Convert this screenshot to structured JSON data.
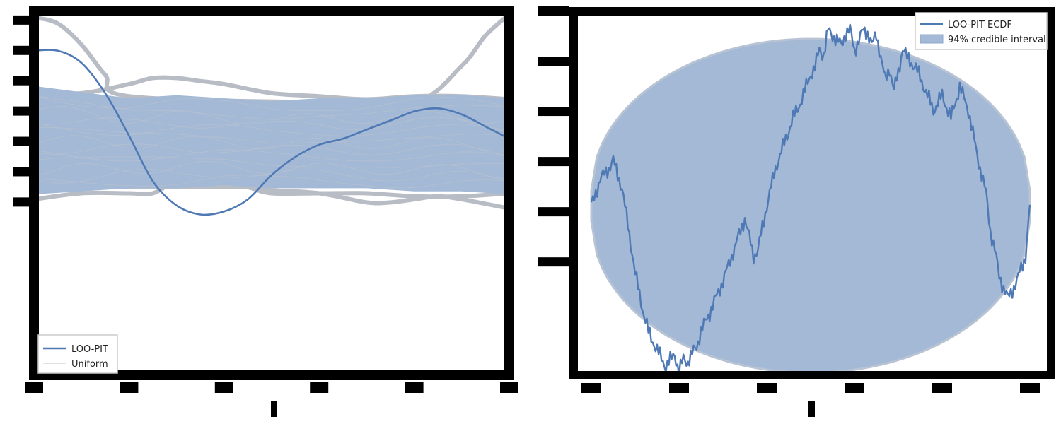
{
  "colors": {
    "line": "#4f79b5",
    "band": "#a3b9d6",
    "uniform": "#b8bcc4",
    "spine": "#000000",
    "background": "#ffffff"
  },
  "chart_data": [
    {
      "type": "line",
      "subtype": "kde-loo-pit",
      "xlim": [
        0,
        1
      ],
      "ylim": [
        0,
        1.2
      ],
      "grid": false,
      "tick_labels_legible": false,
      "legend": {
        "placement": "bottom-left",
        "entries": [
          {
            "label": "LOO-PIT",
            "style": "line",
            "color": "#4f79b5"
          },
          {
            "label": "Uniform",
            "style": "thin-line",
            "color": "#b8bcc4"
          }
        ]
      },
      "series": [
        {
          "name": "LOO-PIT",
          "x": [
            0,
            0.05,
            0.1,
            0.15,
            0.2,
            0.25,
            0.3,
            0.35,
            0.4,
            0.45,
            0.5,
            0.55,
            0.6,
            0.65,
            0.7,
            0.75,
            0.8,
            0.85,
            0.9,
            0.95,
            1.0
          ],
          "y": [
            1.07,
            1.07,
            1.03,
            0.93,
            0.79,
            0.64,
            0.56,
            0.53,
            0.54,
            0.58,
            0.66,
            0.72,
            0.76,
            0.78,
            0.81,
            0.84,
            0.87,
            0.88,
            0.86,
            0.82,
            0.78
          ]
        }
      ],
      "uniform_band": {
        "x": [
          0,
          0.1,
          0.2,
          0.3,
          0.4,
          0.5,
          0.6,
          0.7,
          0.8,
          0.9,
          1.0
        ],
        "lower": [
          0.6,
          0.61,
          0.62,
          0.62,
          0.63,
          0.62,
          0.62,
          0.62,
          0.61,
          0.61,
          0.6
        ],
        "upper": [
          0.95,
          0.93,
          0.91,
          0.92,
          0.91,
          0.9,
          0.91,
          0.91,
          0.92,
          0.92,
          0.91
        ]
      },
      "uniform_extremes": [
        {
          "x": [
            0,
            0.05,
            0.1,
            0.15,
            0.2,
            0.6,
            0.8,
            0.9,
            0.95,
            1.0
          ],
          "y": [
            1.18,
            1.16,
            1.09,
            0.99,
            0.92,
            0.9,
            0.9,
            1.02,
            1.12,
            1.19
          ]
        },
        {
          "x": [
            0,
            0.1,
            0.2,
            0.25,
            0.3,
            0.35,
            0.4,
            0.45,
            0.5,
            0.6,
            0.7,
            0.8,
            0.9,
            1.0
          ],
          "y": [
            0.58,
            0.6,
            0.6,
            0.6,
            0.64,
            0.64,
            0.63,
            0.62,
            0.6,
            0.6,
            0.6,
            0.59,
            0.59,
            0.6
          ]
        },
        {
          "x": [
            0,
            0.2,
            0.3,
            0.35,
            0.4,
            0.45,
            0.5,
            0.6,
            0.7,
            0.75,
            0.8,
            0.85,
            0.9,
            1.0
          ],
          "y": [
            0.62,
            0.62,
            0.62,
            0.62,
            0.62,
            0.62,
            0.61,
            0.6,
            0.57,
            0.57,
            0.58,
            0.59,
            0.58,
            0.55
          ]
        },
        {
          "x": [
            0,
            0.1,
            0.2,
            0.25,
            0.3,
            0.35,
            0.4,
            0.5,
            0.6,
            0.7,
            0.8,
            0.9,
            1.0
          ],
          "y": [
            0.93,
            0.93,
            0.96,
            0.98,
            0.98,
            0.97,
            0.96,
            0.93,
            0.92,
            0.91,
            0.92,
            0.92,
            0.91
          ]
        }
      ]
    },
    {
      "type": "line",
      "subtype": "loo-pit-ecdf-difference",
      "xlim": [
        0,
        1
      ],
      "ylim": [
        -0.135,
        0.155
      ],
      "grid": false,
      "tick_labels_legible": false,
      "legend": {
        "placement": "top-right",
        "entries": [
          {
            "label": "LOO-PIT ECDF",
            "style": "line",
            "color": "#4f79b5"
          },
          {
            "label": "94% credible interval",
            "style": "patch",
            "color": "#a3b9d6"
          }
        ]
      },
      "credible_interval": {
        "shape": "elliptical",
        "half_width_at_center": 0.121
      },
      "series": [
        {
          "name": "LOO-PIT ECDF",
          "x": [
            0,
            0.02,
            0.04,
            0.05,
            0.07,
            0.09,
            0.1,
            0.12,
            0.13,
            0.15,
            0.17,
            0.19,
            0.2,
            0.21,
            0.22,
            0.24,
            0.25,
            0.27,
            0.3,
            0.33,
            0.35,
            0.37,
            0.38,
            0.4,
            0.42,
            0.44,
            0.46,
            0.48,
            0.5,
            0.51,
            0.52,
            0.53,
            0.54,
            0.56,
            0.57,
            0.58,
            0.59,
            0.6,
            0.61,
            0.62,
            0.63,
            0.64,
            0.65,
            0.67,
            0.68,
            0.69,
            0.7,
            0.71,
            0.72,
            0.74,
            0.75,
            0.77,
            0.78,
            0.8,
            0.82,
            0.84,
            0.86,
            0.88,
            0.9,
            0.91,
            0.92,
            0.93,
            0.95,
            0.97,
            0.99,
            1.0
          ],
          "y": [
            0.0,
            0.021,
            0.03,
            0.036,
            0.014,
            -0.03,
            -0.054,
            -0.087,
            -0.1,
            -0.115,
            -0.128,
            -0.118,
            -0.132,
            -0.122,
            -0.124,
            -0.112,
            -0.1,
            -0.085,
            -0.06,
            -0.03,
            -0.01,
            -0.04,
            -0.035,
            0.0,
            0.03,
            0.05,
            0.07,
            0.085,
            0.105,
            0.11,
            0.125,
            0.12,
            0.14,
            0.132,
            0.128,
            0.138,
            0.14,
            0.124,
            0.132,
            0.14,
            0.138,
            0.128,
            0.137,
            0.1,
            0.11,
            0.092,
            0.106,
            0.126,
            0.118,
            0.11,
            0.102,
            0.085,
            0.076,
            0.088,
            0.07,
            0.095,
            0.076,
            0.04,
            0.01,
            -0.02,
            -0.035,
            -0.056,
            -0.074,
            -0.06,
            -0.04,
            0.0
          ]
        }
      ]
    }
  ]
}
